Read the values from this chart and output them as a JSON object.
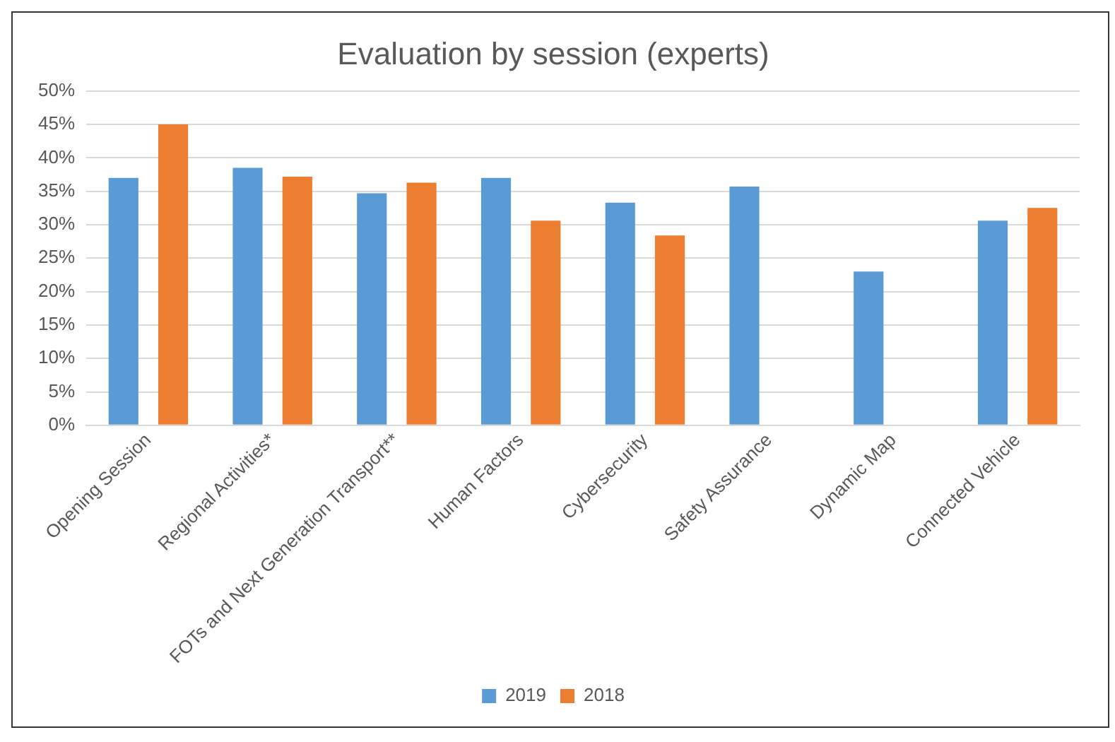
{
  "chart_data": {
    "type": "bar",
    "title": "Evaluation by session (experts)",
    "categories": [
      "Opening Session",
      "Regional Activities*",
      "FOTs and Next Generation Transport**",
      "Human Factors",
      "Cybersecurity",
      "Safety Assurance",
      "Dynamic Map",
      "Connected Vehicle"
    ],
    "series": [
      {
        "name": "2019",
        "color": "#5b9bd5",
        "values": [
          37.0,
          38.5,
          34.7,
          37.0,
          33.3,
          35.7,
          23.0,
          30.6
        ]
      },
      {
        "name": "2018",
        "color": "#ed7d31",
        "values": [
          45.0,
          37.2,
          36.3,
          30.6,
          28.4,
          null,
          null,
          32.5
        ]
      }
    ],
    "ylim": [
      0,
      50
    ],
    "yticks": [
      {
        "value": 0,
        "label": "0%"
      },
      {
        "value": 5,
        "label": "5%"
      },
      {
        "value": 10,
        "label": "10%"
      },
      {
        "value": 15,
        "label": "15%"
      },
      {
        "value": 20,
        "label": "20%"
      },
      {
        "value": 25,
        "label": "25%"
      },
      {
        "value": 30,
        "label": "30%"
      },
      {
        "value": 35,
        "label": "35%"
      },
      {
        "value": 40,
        "label": "40%"
      },
      {
        "value": 45,
        "label": "45%"
      },
      {
        "value": 50,
        "label": "50%"
      }
    ],
    "grid": "y",
    "legend": "bottom"
  }
}
